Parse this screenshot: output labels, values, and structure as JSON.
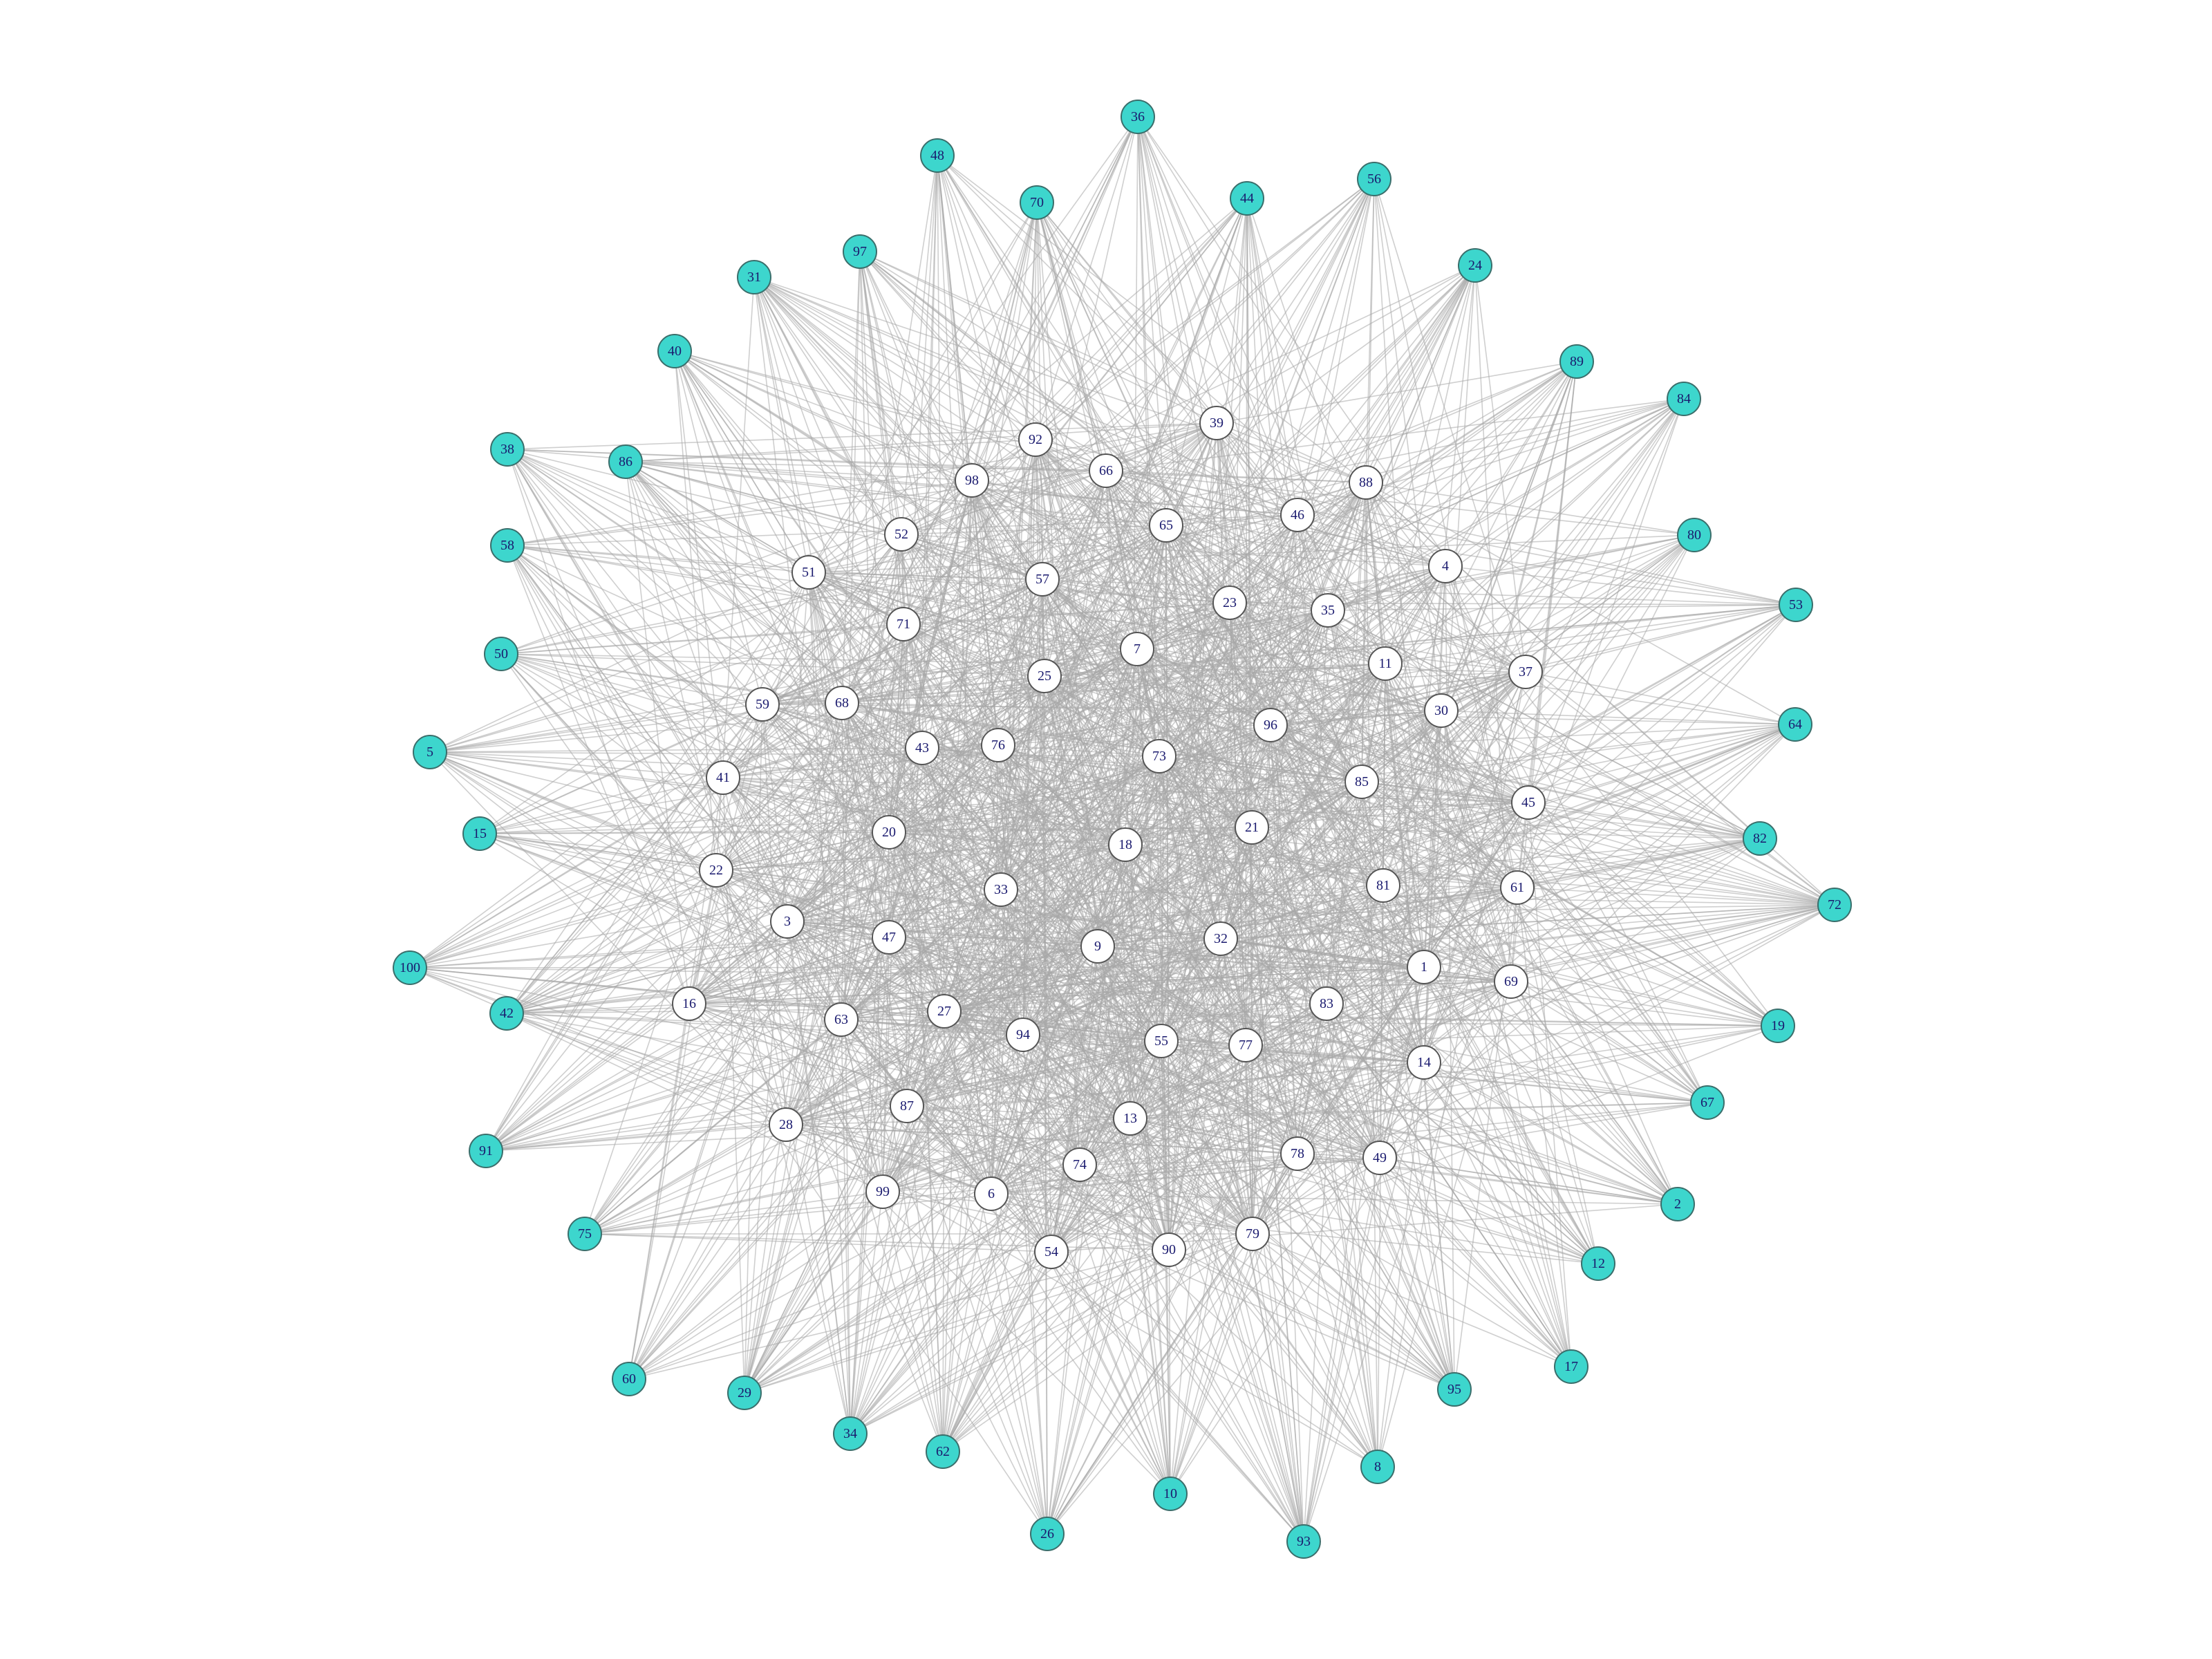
{
  "colors": {
    "core_fill": "#ffffff",
    "peripheral_fill": "#3dd6cd",
    "edge": "#a8a8a8",
    "label": "#1a1a6e"
  },
  "core_nodes": [
    "92",
    "39",
    "98",
    "66",
    "88",
    "46",
    "65",
    "52",
    "51",
    "57",
    "4",
    "23",
    "35",
    "71",
    "7",
    "11",
    "37",
    "25",
    "30",
    "59",
    "68",
    "96",
    "43",
    "76",
    "73",
    "41",
    "85",
    "45",
    "20",
    "21",
    "18",
    "22",
    "33",
    "61",
    "81",
    "3",
    "47",
    "9",
    "32",
    "1",
    "69",
    "16",
    "63",
    "27",
    "94",
    "55",
    "77",
    "83",
    "14",
    "87",
    "13",
    "28",
    "78",
    "49",
    "74",
    "99",
    "6",
    "79",
    "90",
    "54"
  ],
  "peripheral_nodes": [
    "36",
    "48",
    "70",
    "44",
    "56",
    "97",
    "31",
    "24",
    "40",
    "89",
    "84",
    "38",
    "86",
    "80",
    "58",
    "53",
    "50",
    "64",
    "5",
    "82",
    "15",
    "72",
    "100",
    "42",
    "19",
    "67",
    "91",
    "2",
    "75",
    "12",
    "17",
    "60",
    "29",
    "95",
    "34",
    "62",
    "8",
    "10",
    "26",
    "93"
  ]
}
